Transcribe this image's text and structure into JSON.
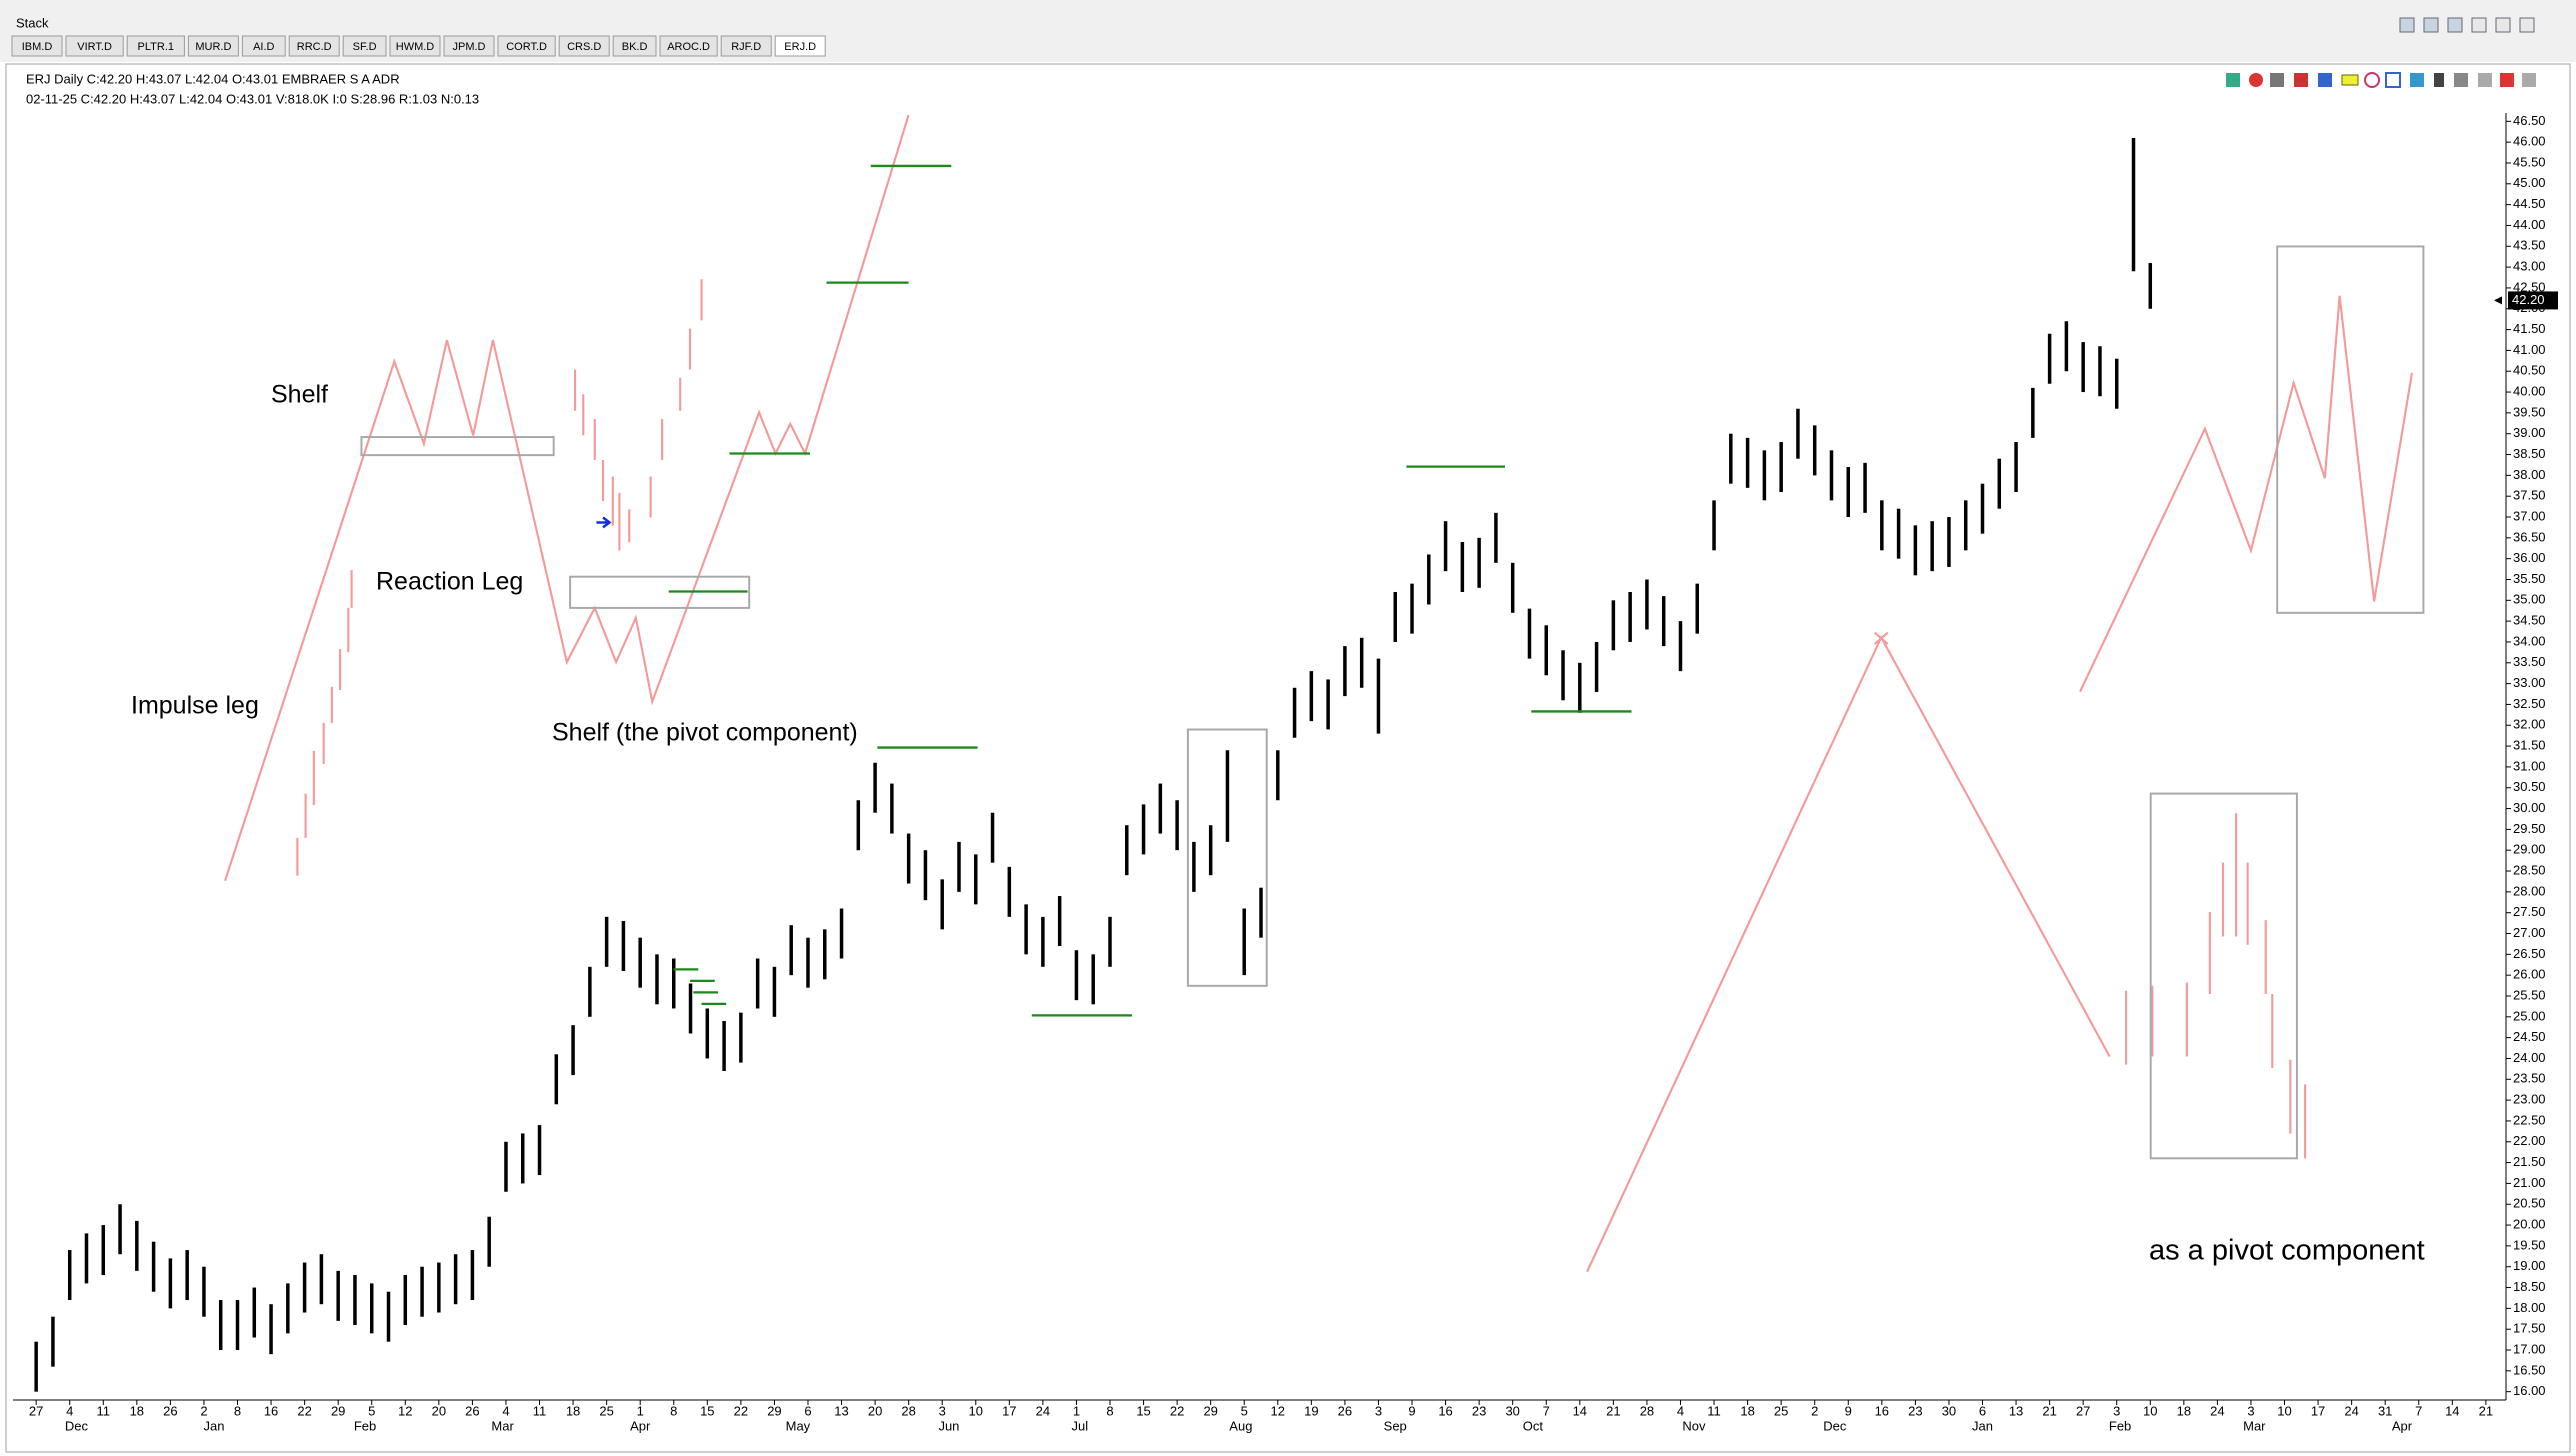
{
  "window": {
    "title": "Stack",
    "tabs": [
      "IBM.D",
      "VIRT.D",
      "PLTR.1",
      "MUR.D",
      "AI.D",
      "RRC.D",
      "SF.D",
      "HWM.D",
      "JPM.D",
      "CORT.D",
      "CRS.D",
      "BK.D",
      "AROC.D",
      "RJF.D",
      "ERJ.D"
    ]
  },
  "chart_data": {
    "type": "hilo",
    "title": "ERJ Daily C:42.20 H:43.07 L:42.04 O:43.01 EMBRAER S A ADR",
    "subtitle": "02-11-25 C:42.20 H:43.07 L:42.04 O:43.01 V:818.0K I:0 S:28.96 R:1.03 N:0.13",
    "annotations": [
      "Shelf",
      "Reaction Leg",
      "Impulse leg",
      "Shelf (the pivot component)",
      "as a pivot component"
    ],
    "last_value": 42.2,
    "last_value_label": "42.20",
    "xlim": [
      -0.69,
      73.6
    ],
    "ylim": [
      15.8,
      46.7
    ],
    "series": [
      {
        "color": "#000000",
        "x": [
          0,
          0.5,
          1,
          1.5,
          2,
          2.5,
          3,
          3.5,
          4,
          4.5,
          5,
          5.5,
          6,
          6.5,
          7,
          7.5,
          8,
          8.5,
          9,
          9.5,
          10,
          10.5,
          11,
          11.5,
          12,
          12.5,
          13,
          13.5,
          14,
          14.5,
          15,
          15.5,
          16,
          16.5,
          17,
          17.5,
          18,
          18.5,
          19,
          19.5,
          20,
          20.5,
          21,
          21.5,
          22,
          22.5,
          23,
          23.5,
          24,
          24.5,
          25,
          25.5,
          26,
          26.5,
          27,
          27.5,
          28,
          28.5,
          29,
          29.5,
          30,
          30.5,
          31,
          31.5,
          32,
          32.5,
          33,
          33.5,
          34,
          34.5,
          35,
          35.5,
          36,
          36.5,
          37,
          37.5,
          38,
          38.5,
          39,
          39.5,
          40,
          40.5,
          41,
          41.5,
          42,
          42.5,
          43,
          43.5,
          44,
          44.5,
          45,
          45.5,
          46,
          46.5,
          47,
          47.5,
          48,
          48.5,
          49,
          49.5,
          50,
          50.5,
          51,
          51.5,
          52,
          52.5,
          53,
          53.5,
          54,
          54.5,
          55,
          55.5,
          56,
          56.5,
          57,
          57.5,
          58,
          58.5,
          59,
          59.5,
          60,
          60.5,
          61,
          61.5,
          62,
          62.5,
          63
        ],
        "high": [
          17.2,
          17.8,
          19.4,
          19.8,
          20.0,
          20.5,
          20.1,
          19.6,
          19.2,
          19.4,
          19.0,
          18.2,
          18.2,
          18.5,
          18.1,
          18.6,
          19.1,
          19.3,
          18.9,
          18.8,
          18.6,
          18.4,
          18.8,
          19.0,
          19.1,
          19.3,
          19.4,
          20.2,
          22.0,
          22.2,
          22.4,
          24.1,
          24.8,
          26.2,
          27.4,
          27.3,
          26.9,
          26.5,
          26.4,
          25.8,
          25.2,
          24.9,
          25.1,
          26.4,
          26.2,
          27.2,
          26.9,
          27.1,
          27.6,
          30.2,
          31.1,
          30.6,
          29.4,
          29.0,
          28.3,
          29.2,
          28.9,
          29.9,
          28.6,
          27.7,
          27.4,
          27.9,
          26.6,
          26.5,
          27.4,
          29.6,
          30.1,
          30.6,
          30.2,
          29.2,
          29.6,
          31.4,
          27.6,
          28.1,
          31.4,
          32.9,
          33.3,
          33.1,
          33.9,
          34.1,
          33.6,
          35.2,
          35.4,
          36.1,
          36.9,
          36.4,
          36.5,
          37.1,
          35.9,
          34.8,
          34.4,
          33.8,
          33.5,
          34.0,
          35.0,
          35.2,
          35.5,
          35.1,
          34.5,
          35.4,
          37.4,
          39.0,
          38.9,
          38.6,
          38.8,
          39.6,
          39.2,
          38.6,
          38.2,
          38.3,
          37.4,
          37.2,
          36.8,
          36.9,
          37.0,
          37.4,
          37.8,
          38.4,
          38.8,
          40.1,
          41.4,
          41.7,
          41.2,
          41.1,
          40.8,
          46.1,
          43.1
        ],
        "low": [
          16.0,
          16.6,
          18.2,
          18.6,
          18.8,
          19.3,
          18.9,
          18.4,
          18.0,
          18.2,
          17.8,
          17.0,
          17.0,
          17.3,
          16.9,
          17.4,
          17.9,
          18.1,
          17.7,
          17.6,
          17.4,
          17.2,
          17.6,
          17.8,
          17.9,
          18.1,
          18.2,
          19.0,
          20.8,
          21.0,
          21.2,
          22.9,
          23.6,
          25.0,
          26.2,
          26.1,
          25.7,
          25.3,
          25.2,
          24.6,
          24.0,
          23.7,
          23.9,
          25.2,
          25.0,
          26.0,
          25.7,
          25.9,
          26.4,
          29.0,
          29.9,
          29.4,
          28.2,
          27.8,
          27.1,
          28.0,
          27.7,
          28.7,
          27.4,
          26.5,
          26.2,
          26.7,
          25.4,
          25.3,
          26.2,
          28.4,
          28.9,
          29.4,
          29.0,
          28.0,
          28.4,
          29.2,
          26.0,
          26.9,
          30.2,
          31.7,
          32.1,
          31.9,
          32.7,
          32.9,
          31.8,
          34.0,
          34.2,
          34.9,
          35.7,
          35.2,
          35.3,
          35.9,
          34.7,
          33.6,
          33.2,
          32.6,
          32.3,
          32.8,
          33.8,
          34.0,
          34.3,
          33.9,
          33.3,
          34.2,
          36.2,
          37.8,
          37.7,
          37.4,
          37.6,
          38.4,
          38.0,
          37.4,
          37.0,
          37.1,
          36.2,
          36.0,
          35.6,
          35.7,
          35.8,
          36.2,
          36.6,
          37.2,
          37.6,
          38.9,
          40.2,
          40.5,
          40.0,
          39.9,
          39.6,
          42.9,
          42.0
        ]
      }
    ],
    "yticks": [
      {
        "value": 16,
        "label": "16.00"
      },
      {
        "value": 16.5,
        "label": "16.50"
      },
      {
        "value": 17,
        "label": "17.00"
      },
      {
        "value": 17.5,
        "label": "17.50"
      },
      {
        "value": 18,
        "label": "18.00"
      },
      {
        "value": 18.5,
        "label": "18.50"
      },
      {
        "value": 19,
        "label": "19.00"
      },
      {
        "value": 19.5,
        "label": "19.50"
      },
      {
        "value": 20,
        "label": "20.00"
      },
      {
        "value": 20.5,
        "label": "20.50"
      },
      {
        "value": 21,
        "label": "21.00"
      },
      {
        "value": 21.5,
        "label": "21.50"
      },
      {
        "value": 22,
        "label": "22.00"
      },
      {
        "value": 22.5,
        "label": "22.50"
      },
      {
        "value": 23,
        "label": "23.00"
      },
      {
        "value": 23.5,
        "label": "23.50"
      },
      {
        "value": 24,
        "label": "24.00"
      },
      {
        "value": 24.5,
        "label": "24.50"
      },
      {
        "value": 25,
        "label": "25.00"
      },
      {
        "value": 25.5,
        "label": "25.50"
      },
      {
        "value": 26,
        "label": "26.00"
      },
      {
        "value": 26.5,
        "label": "26.50"
      },
      {
        "value": 27,
        "label": "27.00"
      },
      {
        "value": 27.5,
        "label": "27.50"
      },
      {
        "value": 28,
        "label": "28.00"
      },
      {
        "value": 28.5,
        "label": "28.50"
      },
      {
        "value": 29,
        "label": "29.00"
      },
      {
        "value": 29.5,
        "label": "29.50"
      },
      {
        "value": 30,
        "label": "30.00"
      },
      {
        "value": 30.5,
        "label": "30.50"
      },
      {
        "value": 31,
        "label": "31.00"
      },
      {
        "value": 31.5,
        "label": "31.50"
      },
      {
        "value": 32,
        "label": "32.00"
      },
      {
        "value": 32.5,
        "label": "32.50"
      },
      {
        "value": 33,
        "label": "33.00"
      },
      {
        "value": 33.5,
        "label": "33.50"
      },
      {
        "value": 34,
        "label": "34.00"
      },
      {
        "value": 34.5,
        "label": "34.50"
      },
      {
        "value": 35,
        "label": "35.00"
      },
      {
        "value": 35.5,
        "label": "35.50"
      },
      {
        "value": 36,
        "label": "36.00"
      },
      {
        "value": 36.5,
        "label": "36.50"
      },
      {
        "value": 37,
        "label": "37.00"
      },
      {
        "value": 37.5,
        "label": "37.50"
      },
      {
        "value": 38,
        "label": "38.00"
      },
      {
        "value": 38.5,
        "label": "38.50"
      },
      {
        "value": 39,
        "label": "39.00"
      },
      {
        "value": 39.5,
        "label": "39.50"
      },
      {
        "value": 40,
        "label": "40.00"
      },
      {
        "value": 40.5,
        "label": "40.50"
      },
      {
        "value": 41,
        "label": "41.00"
      },
      {
        "value": 41.5,
        "label": "41.50"
      },
      {
        "value": 42,
        "label": "42.00"
      },
      {
        "value": 42.5,
        "label": "42.50"
      },
      {
        "value": 43,
        "label": "43.00"
      },
      {
        "value": 43.5,
        "label": "43.50"
      },
      {
        "value": 44,
        "label": "44.00"
      },
      {
        "value": 44.5,
        "label": "44.50"
      },
      {
        "value": 45,
        "label": "45.00"
      },
      {
        "value": 45.5,
        "label": "45.50"
      },
      {
        "value": 46,
        "label": "46.00"
      },
      {
        "value": 46.5,
        "label": "46.50"
      }
    ],
    "xticks": [
      {
        "value": 0,
        "label": "27"
      },
      {
        "value": 1,
        "label": "4"
      },
      {
        "value": 2,
        "label": "11"
      },
      {
        "value": 3,
        "label": "18"
      },
      {
        "value": 4,
        "label": "26"
      },
      {
        "value": 5,
        "label": "2"
      },
      {
        "value": 6,
        "label": "8"
      },
      {
        "value": 7,
        "label": "16"
      },
      {
        "value": 8,
        "label": "22"
      },
      {
        "value": 9,
        "label": "29"
      },
      {
        "value": 10,
        "label": "5"
      },
      {
        "value": 11,
        "label": "12"
      },
      {
        "value": 12,
        "label": "20"
      },
      {
        "value": 13,
        "label": "26"
      },
      {
        "value": 14,
        "label": "4"
      },
      {
        "value": 15,
        "label": "11"
      },
      {
        "value": 16,
        "label": "18"
      },
      {
        "value": 17,
        "label": "25"
      },
      {
        "value": 18,
        "label": "1"
      },
      {
        "value": 19,
        "label": "8"
      },
      {
        "value": 20,
        "label": "15"
      },
      {
        "value": 21,
        "label": "22"
      },
      {
        "value": 22,
        "label": "29"
      },
      {
        "value": 23,
        "label": "6"
      },
      {
        "value": 24,
        "label": "13"
      },
      {
        "value": 25,
        "label": "20"
      },
      {
        "value": 26,
        "label": "28"
      },
      {
        "value": 27,
        "label": "3"
      },
      {
        "value": 28,
        "label": "10"
      },
      {
        "value": 29,
        "label": "17"
      },
      {
        "value": 30,
        "label": "24"
      },
      {
        "value": 31,
        "label": "1"
      },
      {
        "value": 32,
        "label": "8"
      },
      {
        "value": 33,
        "label": "15"
      },
      {
        "value": 34,
        "label": "22"
      },
      {
        "value": 35,
        "label": "29"
      },
      {
        "value": 36,
        "label": "5"
      },
      {
        "value": 37,
        "label": "12"
      },
      {
        "value": 38,
        "label": "19"
      },
      {
        "value": 39,
        "label": "26"
      },
      {
        "value": 40,
        "label": "3"
      },
      {
        "value": 41,
        "label": "9"
      },
      {
        "value": 42,
        "label": "16"
      },
      {
        "value": 43,
        "label": "23"
      },
      {
        "value": 44,
        "label": "30"
      },
      {
        "value": 45,
        "label": "7"
      },
      {
        "value": 46,
        "label": "14"
      },
      {
        "value": 47,
        "label": "21"
      },
      {
        "value": 48,
        "label": "28"
      },
      {
        "value": 49,
        "label": "4"
      },
      {
        "value": 50,
        "label": "11"
      },
      {
        "value": 51,
        "label": "18"
      },
      {
        "value": 52,
        "label": "25"
      },
      {
        "value": 53,
        "label": "2"
      },
      {
        "value": 54,
        "label": "9"
      },
      {
        "value": 55,
        "label": "16"
      },
      {
        "value": 56,
        "label": "23"
      },
      {
        "value": 57,
        "label": "30"
      },
      {
        "value": 58,
        "label": "6"
      },
      {
        "value": 59,
        "label": "13"
      },
      {
        "value": 60,
        "label": "21"
      },
      {
        "value": 61,
        "label": "27"
      },
      {
        "value": 62,
        "label": "3"
      },
      {
        "value": 63,
        "label": "10"
      },
      {
        "value": 64,
        "label": "18"
      },
      {
        "value": 65,
        "label": "24"
      },
      {
        "value": 66,
        "label": "3"
      },
      {
        "value": 67,
        "label": "10"
      },
      {
        "value": 68,
        "label": "17"
      },
      {
        "value": 69,
        "label": "24"
      },
      {
        "value": 70,
        "label": "31"
      },
      {
        "value": 71,
        "label": "7"
      },
      {
        "value": 72,
        "label": "14"
      },
      {
        "value": 73,
        "label": "21"
      }
    ],
    "month_labels": [
      {
        "value": 1.2,
        "label": "Dec"
      },
      {
        "value": 5.3,
        "label": "Jan"
      },
      {
        "value": 9.8,
        "label": "Feb"
      },
      {
        "value": 13.9,
        "label": "Mar"
      },
      {
        "value": 18,
        "label": "Apr"
      },
      {
        "value": 22.7,
        "label": "May"
      },
      {
        "value": 27.2,
        "label": "Jun"
      },
      {
        "value": 31.1,
        "label": "Jul"
      },
      {
        "value": 35.9,
        "label": "Aug"
      },
      {
        "value": 40.5,
        "label": "Sep"
      },
      {
        "value": 44.6,
        "label": "Oct"
      },
      {
        "value": 49.4,
        "label": "Nov"
      },
      {
        "value": 53.6,
        "label": "Dec"
      },
      {
        "value": 58,
        "label": "Jan"
      },
      {
        "value": 62.1,
        "label": "Feb"
      },
      {
        "value": 66.1,
        "label": "Mar"
      },
      {
        "value": 70.5,
        "label": "Apr"
      }
    ]
  }
}
